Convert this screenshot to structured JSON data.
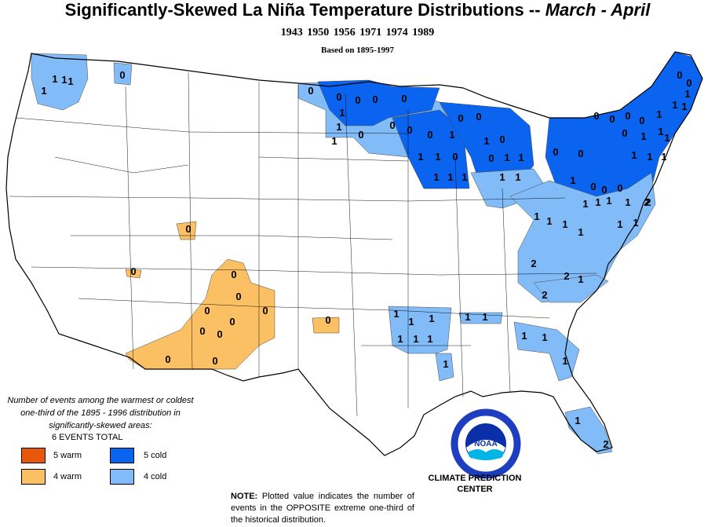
{
  "title": {
    "main": "Significantly-Skewed La Niña Temperature Distributions  --",
    "period": "March - April"
  },
  "years": "1943 1950 1956 1971 1974 1989",
  "basis": "Based on 1895-1997",
  "legend": {
    "description": "Number of events among the warmest or coldest one-third of the 1895 - 1996 distribution in significantly-skewed areas:",
    "total": "6 EVENTS TOTAL",
    "items": [
      {
        "label": "5 warm",
        "color": "#e8580c"
      },
      {
        "label": "4 warm",
        "color": "#fbc063"
      },
      {
        "label": "5 cold",
        "color": "#0a64f0"
      },
      {
        "label": "4 cold",
        "color": "#82bcf8"
      }
    ]
  },
  "note": {
    "label": "NOTE:",
    "text": "Plotted value indicates the number of events in the OPPOSITE extreme one-third of the historical distribution."
  },
  "agency": {
    "logo": "NOAA",
    "line1": "CLIMATE PREDICTION",
    "line2": "CENTER"
  },
  "colors": {
    "warm4": "#fbc063",
    "cold5": "#0a64f0",
    "cold4": "#82bcf8",
    "outline": "#000000"
  },
  "map_labels": [
    "1",
    "1",
    "1",
    "1",
    "0",
    "0",
    "0",
    "0",
    "0",
    "1",
    "1",
    "0",
    "1",
    "0",
    "0",
    "0",
    "0",
    "1",
    "1",
    "1",
    "0",
    "1",
    "1",
    "1",
    "0",
    "0",
    "1",
    "0",
    "1",
    "0",
    "1",
    "1",
    "1",
    "0",
    "0",
    "0",
    "0",
    "0",
    "0",
    "1",
    "1",
    "1",
    "0",
    "1",
    "1",
    "0",
    "0",
    "1",
    "1",
    "1",
    "1",
    "1",
    "0",
    "0",
    "0",
    "1",
    "1",
    "1",
    "1",
    "1",
    "2",
    "1",
    "1",
    "1",
    "1",
    "1",
    "1",
    "2",
    "2",
    "2",
    "1",
    "1",
    "1",
    "1",
    "1",
    "1",
    "1",
    "1",
    "1",
    "1",
    "1",
    "1",
    "1",
    "1",
    "2",
    "2",
    "0",
    "0",
    "0",
    "0",
    "0",
    "0",
    "0",
    "0",
    "0",
    "0",
    "0",
    "0"
  ]
}
